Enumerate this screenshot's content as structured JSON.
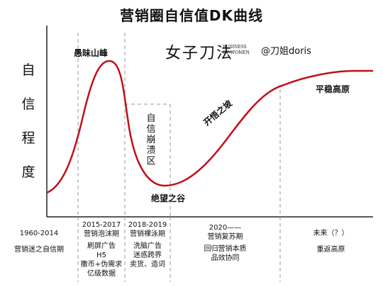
{
  "title": "营销圈自信值DK曲线",
  "y_axis_label": [
    "自",
    "信",
    "程",
    "度"
  ],
  "brand": {
    "name_zh": "女子刀法",
    "name_en": "BUSINESS OF WOMEN",
    "handle": "@刀姐doris"
  },
  "curve_labels": {
    "peak": "愚昧山峰",
    "collapse": "自信崩溃区",
    "valley": "绝望之谷",
    "slope": "开悟之坡",
    "plateau": "平稳高原"
  },
  "periods": [
    {
      "period": "1960-2014",
      "stage": "",
      "desc": "营销迷之自信期"
    },
    {
      "period": "2015-2017",
      "stage": "营销泡沫期",
      "desc": "刷屏广告\nH5\n撒币+伪需求\n亿级数据"
    },
    {
      "period": "2018-2019",
      "stage": "营销裸泳期",
      "desc": "洗脑广告\n迷惑跨界\n卖货、造词"
    },
    {
      "period": "2020——",
      "stage": "营销复苏期",
      "desc": "回归营销本质\n品效协同"
    },
    {
      "period": "未来（？）",
      "stage": "",
      "desc": "重返高原"
    }
  ],
  "colors": {
    "curve": "#c0101a",
    "axis": "#222222",
    "dashed": "#9a9a9a"
  }
}
